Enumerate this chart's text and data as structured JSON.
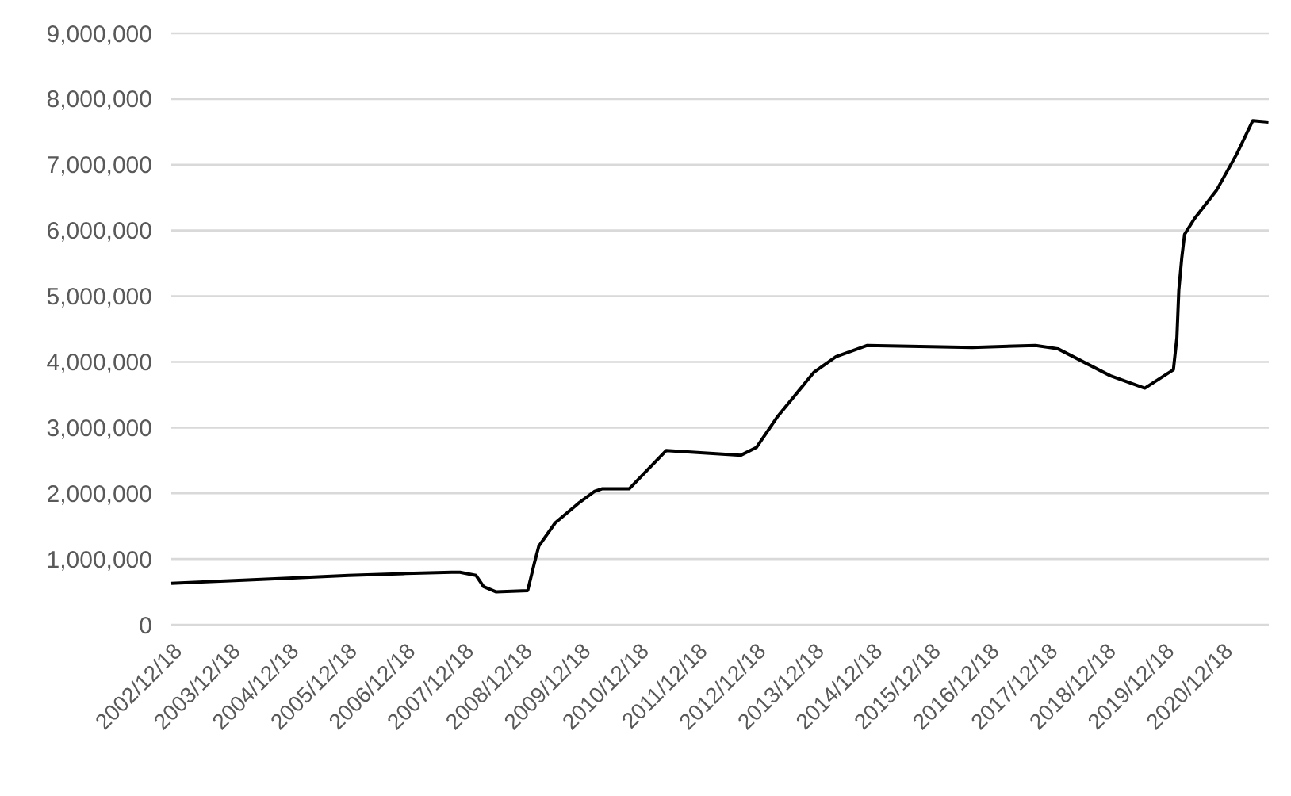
{
  "chart_data": {
    "type": "line",
    "x": [
      "2002-12-18",
      "2003-12-20",
      "2004-12-20",
      "2006-01-01",
      "2006-12-25",
      "2007-10-08",
      "2007-11-28",
      "2008-03-08",
      "2008-04-24",
      "2008-07-12",
      "2009-01-25",
      "2009-03-08",
      "2009-04-05",
      "2009-07-16",
      "2009-12-09",
      "2010-03-20",
      "2010-05-08",
      "2010-10-23",
      "2011-06-10",
      "2012-09-20",
      "2012-12-27",
      "2013-05-05",
      "2013-12-20",
      "2014-05-08",
      "2014-11-20",
      "2016-09-06",
      "2017-10-08",
      "2018-02-24",
      "2019-01-18",
      "2019-08-22",
      "2020-02-17",
      "2020-03-10",
      "2020-03-22",
      "2020-04-09",
      "2020-04-27",
      "2020-06-28",
      "2020-11-13",
      "2021-03-21",
      "2021-06-28",
      "2021-10-04"
    ],
    "series": [
      {
        "color": "#000000",
        "values": [
          630000,
          670000,
          710000,
          750000,
          780000,
          800000,
          800000,
          750000,
          580000,
          500000,
          520000,
          940000,
          1200000,
          1550000,
          1850000,
          2030000,
          2070000,
          2070000,
          2650000,
          2580000,
          2700000,
          3160000,
          3840000,
          4080000,
          4250000,
          4220000,
          4250000,
          4200000,
          3790000,
          3600000,
          3880000,
          4370000,
          5090000,
          5570000,
          5940000,
          6180000,
          6610000,
          7170000,
          7670000,
          7650000
        ]
      }
    ],
    "xlim": [
      "2002-12-18",
      "2021-10-06"
    ],
    "xticks": [
      {
        "value": "2002-12-18",
        "label": "2002/12/18"
      },
      {
        "value": "2003-12-18",
        "label": "2003/12/18"
      },
      {
        "value": "2004-12-18",
        "label": "2004/12/18"
      },
      {
        "value": "2005-12-18",
        "label": "2005/12/18"
      },
      {
        "value": "2006-12-18",
        "label": "2006/12/18"
      },
      {
        "value": "2007-12-18",
        "label": "2007/12/18"
      },
      {
        "value": "2008-12-18",
        "label": "2008/12/18"
      },
      {
        "value": "2009-12-18",
        "label": "2009/12/18"
      },
      {
        "value": "2010-12-18",
        "label": "2010/12/18"
      },
      {
        "value": "2011-12-18",
        "label": "2011/12/18"
      },
      {
        "value": "2012-12-18",
        "label": "2012/12/18"
      },
      {
        "value": "2013-12-18",
        "label": "2013/12/18"
      },
      {
        "value": "2014-12-18",
        "label": "2014/12/18"
      },
      {
        "value": "2015-12-18",
        "label": "2015/12/18"
      },
      {
        "value": "2016-12-18",
        "label": "2016/12/18"
      },
      {
        "value": "2017-12-18",
        "label": "2017/12/18"
      },
      {
        "value": "2018-12-18",
        "label": "2018/12/18"
      },
      {
        "value": "2019-12-18",
        "label": "2019/12/18"
      },
      {
        "value": "2020-12-18",
        "label": "2020/12/18"
      }
    ],
    "ylim": [
      0,
      9000000
    ],
    "yticks": [
      {
        "value": 0,
        "label": "0"
      },
      {
        "value": 1000000,
        "label": "1,000,000"
      },
      {
        "value": 2000000,
        "label": "2,000,000"
      },
      {
        "value": 3000000,
        "label": "3,000,000"
      },
      {
        "value": 4000000,
        "label": "4,000,000"
      },
      {
        "value": 5000000,
        "label": "5,000,000"
      },
      {
        "value": 6000000,
        "label": "6,000,000"
      },
      {
        "value": 7000000,
        "label": "7,000,000"
      },
      {
        "value": 8000000,
        "label": "8,000,000"
      },
      {
        "value": 9000000,
        "label": "9,000,000"
      }
    ],
    "grid": "y",
    "marker": "none",
    "line_style": "solid"
  }
}
